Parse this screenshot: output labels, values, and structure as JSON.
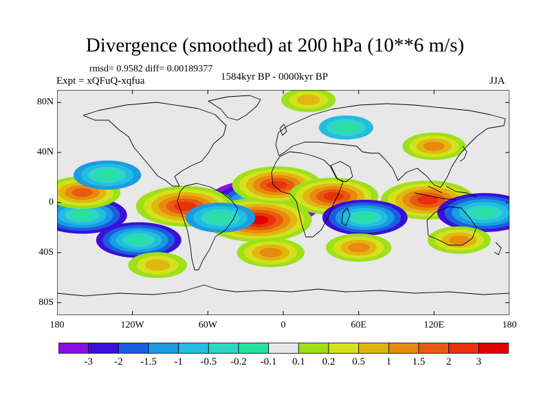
{
  "title": "Divergence (smoothed) at 200 hPa (10**6 m/s)",
  "stats": "rmsd= 0.9582 diff= 0.00189377",
  "experiment": "Expt = xQFuQ-xqfua",
  "period": "1584kyr BP - 0000kyr BP",
  "season": "JJA",
  "y_axis": {
    "ticks": [
      {
        "label": "80N",
        "lat": 80
      },
      {
        "label": "40N",
        "lat": 40
      },
      {
        "label": "0",
        "lat": 0
      },
      {
        "label": "40S",
        "lat": -40
      },
      {
        "label": "80S",
        "lat": -80
      }
    ]
  },
  "x_axis": {
    "ticks": [
      {
        "label": "180",
        "lon": -180
      },
      {
        "label": "120W",
        "lon": -120
      },
      {
        "label": "60W",
        "lon": -60
      },
      {
        "label": "0",
        "lon": 0
      },
      {
        "label": "60E",
        "lon": 60
      },
      {
        "label": "120E",
        "lon": 120
      },
      {
        "label": "180",
        "lon": 180
      }
    ]
  },
  "colorbar": {
    "labels": [
      "-3",
      "-2",
      "-1.5",
      "-1",
      "-0.5",
      "-0.2",
      "-0.1",
      "0.1",
      "0.2",
      "0.5",
      "1",
      "1.5",
      "2",
      "3"
    ],
    "colors": [
      "#8b10e0",
      "#3a10d8",
      "#1a5ee0",
      "#1b9be3",
      "#22bde0",
      "#2fd6c4",
      "#29e0a0",
      "#e8e8e8",
      "#9ee01a",
      "#d4e21c",
      "#e2b612",
      "#e88a0e",
      "#e85a10",
      "#e8320c",
      "#e00000"
    ]
  },
  "field_features": [
    {
      "name": "central-atlantic-low",
      "lon": -15,
      "lat": 0,
      "value": -3.4
    },
    {
      "name": "atlantic-ring-south",
      "lon": -20,
      "lat": -14,
      "value": 3.0
    },
    {
      "name": "atlantic-north",
      "lon": -5,
      "lat": 14,
      "value": 2.2
    },
    {
      "name": "africa-west-pos",
      "lon": 40,
      "lat": 5,
      "value": 2.2
    },
    {
      "name": "south-america-pos",
      "lon": -78,
      "lat": -3,
      "value": 2.6
    },
    {
      "name": "indonesia-pos",
      "lon": 115,
      "lat": 2,
      "value": 2.4
    },
    {
      "name": "west-pacific-neg",
      "lon": 160,
      "lat": -8,
      "value": -2.4
    },
    {
      "name": "east-pacific-neg",
      "lon": -160,
      "lat": -10,
      "value": -2.2
    },
    {
      "name": "south-pacific-neg",
      "lon": -115,
      "lat": -30,
      "value": -2.0
    },
    {
      "name": "indian-ocean-neg",
      "lon": 65,
      "lat": -12,
      "value": -2.0
    },
    {
      "name": "brazil-neg",
      "lon": -50,
      "lat": -12,
      "value": -1.3
    },
    {
      "name": "pacific-north-pos",
      "lon": -160,
      "lat": 8,
      "value": 1.6
    },
    {
      "name": "north-pacific-neg",
      "lon": -140,
      "lat": 22,
      "value": -1.2
    },
    {
      "name": "southern-ocean-pos",
      "lon": 60,
      "lat": -36,
      "value": 1.1
    },
    {
      "name": "australia-pos",
      "lon": 140,
      "lat": -30,
      "value": 1.0
    },
    {
      "name": "asia-pos",
      "lon": 120,
      "lat": 45,
      "value": 1.0
    },
    {
      "name": "arctic-pos",
      "lon": 20,
      "lat": 82,
      "value": 0.6
    },
    {
      "name": "europe-neg",
      "lon": 50,
      "lat": 60,
      "value": -0.6
    },
    {
      "name": "south-atlantic-pos",
      "lon": -10,
      "lat": -40,
      "value": 1.2
    },
    {
      "name": "east-pacific-south-pos",
      "lon": -100,
      "lat": -50,
      "value": 0.8
    }
  ]
}
